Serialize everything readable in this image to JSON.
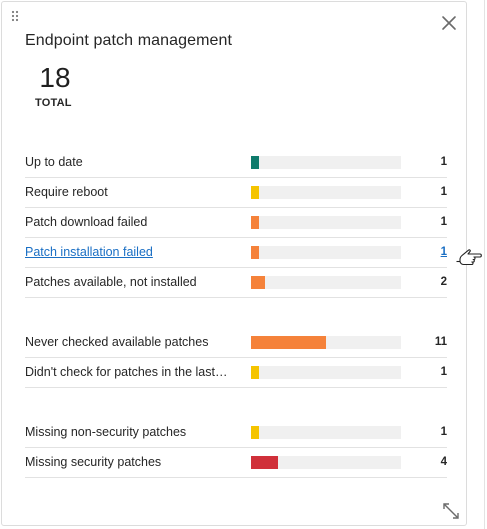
{
  "widget": {
    "title": "Endpoint patch management",
    "total_value": "18",
    "total_label": "TOTAL"
  },
  "rows": [
    {
      "label": "Up to date",
      "value": 1,
      "value_text": "1",
      "color": "#0f7b6c",
      "link": false
    },
    {
      "label": "Require reboot",
      "value": 1,
      "value_text": "1",
      "color": "#f5c400",
      "link": false
    },
    {
      "label": "Patch download failed",
      "value": 1,
      "value_text": "1",
      "color": "#f5823a",
      "link": false
    },
    {
      "label": "Patch installation failed",
      "value": 1,
      "value_text": "1",
      "color": "#f5823a",
      "link": true
    },
    {
      "label": "Patches available, not installed",
      "value": 2,
      "value_text": "2",
      "color": "#f5823a",
      "link": false
    },
    {
      "label": "Never checked available patches",
      "value": 11,
      "value_text": "11",
      "color": "#f5823a",
      "link": false
    },
    {
      "label": "Didn't check for patches in the last…",
      "value": 1,
      "value_text": "1",
      "color": "#f5c400",
      "link": false
    },
    {
      "label": "Missing non-security patches",
      "value": 1,
      "value_text": "1",
      "color": "#f5c400",
      "link": false
    },
    {
      "label": "Missing security patches",
      "value": 4,
      "value_text": "4",
      "color": "#d0303a",
      "link": false
    }
  ],
  "bar_max": 22,
  "icons": {
    "drag": "drag-handle-icon",
    "close": "close-icon",
    "cursor": "hand-pointer-icon",
    "expand": "expand-icon"
  }
}
